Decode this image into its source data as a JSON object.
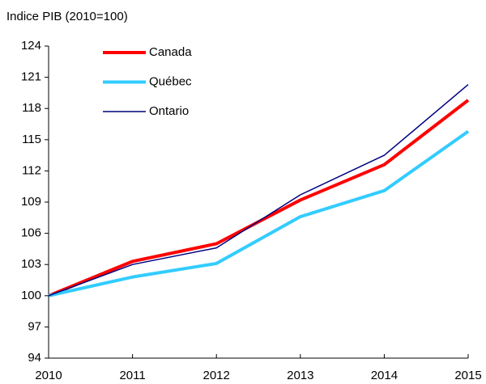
{
  "chart_data": {
    "type": "line",
    "y_label": "Indice PIB (2010=100)",
    "x": [
      2010,
      2011,
      2012,
      2013,
      2014,
      2015
    ],
    "xlim": [
      2010,
      2015
    ],
    "xticks": [
      2010,
      2011,
      2012,
      2013,
      2014,
      2015
    ],
    "ylim": [
      94,
      124
    ],
    "yticks": [
      94,
      97,
      100,
      103,
      106,
      109,
      112,
      115,
      118,
      121,
      124
    ],
    "legend": "upper left",
    "series": [
      {
        "name": "Canada",
        "color": "#ff0000",
        "values": [
          100,
          103.3,
          105,
          109.2,
          112.6,
          118.8
        ]
      },
      {
        "name": "Québec",
        "color": "#33ccff",
        "values": [
          100,
          101.8,
          103.1,
          107.6,
          110.1,
          115.8
        ]
      },
      {
        "name": "Ontario",
        "color": "#000080",
        "values": [
          100,
          103,
          104.6,
          109.7,
          113.5,
          120.3
        ]
      }
    ]
  }
}
